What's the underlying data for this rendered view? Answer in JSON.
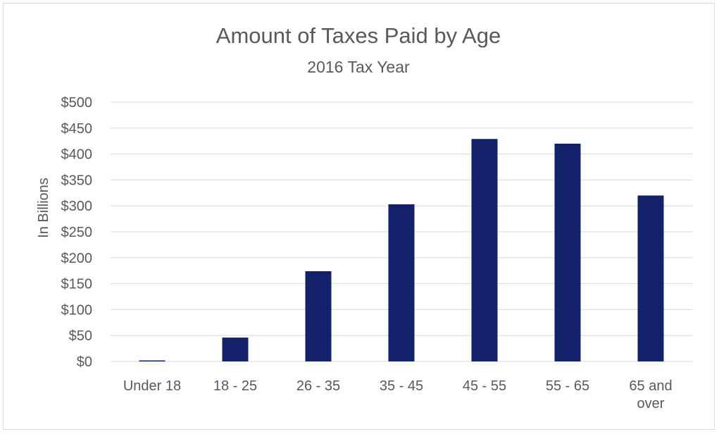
{
  "chart_data": {
    "type": "bar",
    "title": "Amount of Taxes Paid by Age",
    "subtitle": "2016 Tax Year",
    "xlabel": "",
    "ylabel": "In Billions",
    "categories": [
      "Under 18",
      "18 - 25",
      "26 - 35",
      "35 - 45",
      "45 - 55",
      "55 - 65",
      "65 and over"
    ],
    "category_lines": [
      [
        "Under 18"
      ],
      [
        "18 - 25"
      ],
      [
        "26 - 35"
      ],
      [
        "35 - 45"
      ],
      [
        "45 - 55"
      ],
      [
        "55 - 65"
      ],
      [
        "65 and",
        "over"
      ]
    ],
    "values": [
      2,
      46,
      174,
      303,
      429,
      420,
      320
    ],
    "ylim": [
      0,
      500
    ],
    "yticks": [
      0,
      50,
      100,
      150,
      200,
      250,
      300,
      350,
      400,
      450,
      500
    ],
    "ytick_labels": [
      "$0",
      "$50",
      "$100",
      "$150",
      "$200",
      "$250",
      "$300",
      "$350",
      "$400",
      "$450",
      "$500"
    ],
    "grid": true,
    "legend": "none",
    "bar_color": "#12216a",
    "grid_color": "#d9d9d9"
  }
}
